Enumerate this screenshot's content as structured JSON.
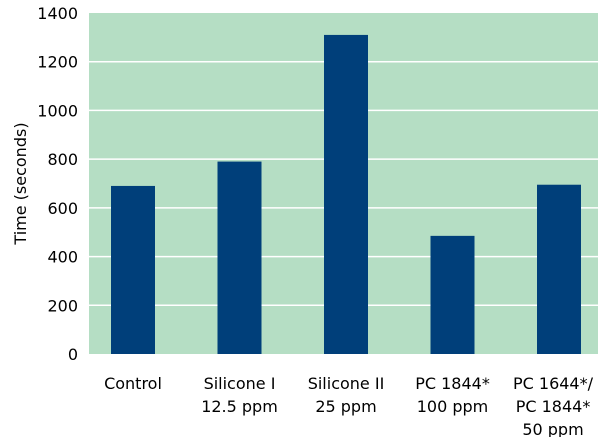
{
  "chart_data": {
    "type": "bar",
    "title": "",
    "xlabel": "",
    "ylabel": "Time (seconds)",
    "ylim": [
      0,
      1400
    ],
    "yticks": [
      0,
      200,
      400,
      600,
      800,
      1000,
      1200,
      1400
    ],
    "grid": true,
    "categories": [
      [
        "Control"
      ],
      [
        "Silicone I",
        "12.5 ppm"
      ],
      [
        "Silicone II",
        "25 ppm"
      ],
      [
        "PC 1844*",
        "100 ppm"
      ],
      [
        "PC 1644*/",
        "PC 1844*",
        "50 ppm"
      ]
    ],
    "values": [
      690,
      790,
      1310,
      485,
      695
    ],
    "colors": {
      "plot_background": "#b5dec4",
      "bar": "#003f7a",
      "gridline": "#ffffff"
    }
  }
}
